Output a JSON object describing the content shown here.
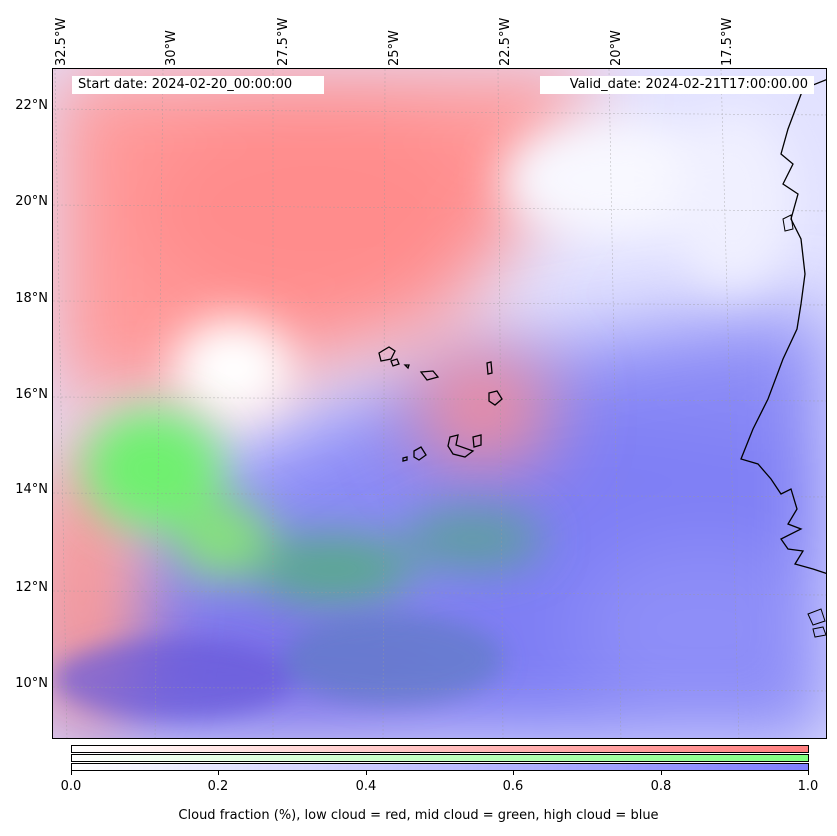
{
  "map": {
    "start_date_text": "Start date: 2024-02-20_00:00:00",
    "valid_date_text": "Valid_date: 2024-02-21T17:00:00.00",
    "lon_labels": [
      "32.5°W",
      "30°W",
      "27.5°W",
      "25°W",
      "22.5°W",
      "20°W",
      "17.5°W"
    ],
    "lat_labels": [
      "22°N",
      "20°N",
      "18°N",
      "16°N",
      "14°N",
      "12°N",
      "10°N"
    ],
    "colors": {
      "low_cloud": "#ff7f7f",
      "mid_cloud": "#7fff7f",
      "high_cloud": "#7f7fff",
      "coastline": "#000000"
    }
  },
  "colorbar": {
    "ticks": [
      "0.0",
      "0.2",
      "0.4",
      "0.6",
      "0.8",
      "1.0"
    ],
    "label": "Cloud fraction (%), low cloud = red, mid cloud = green, high cloud = blue"
  }
}
